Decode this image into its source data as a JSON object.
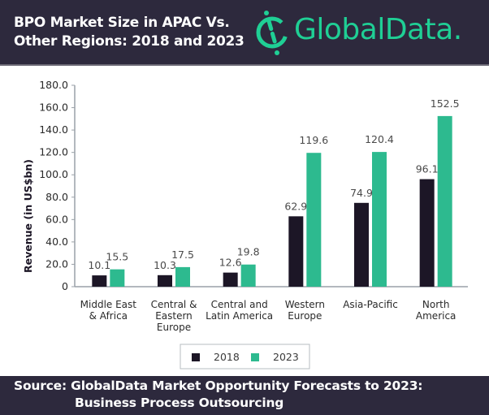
{
  "header": {
    "title_line1": "BPO Market Size in APAC Vs.",
    "title_line2": "Other Regions: 2018 and 2023",
    "logo_text": "GlobalData.",
    "logo_icon": "globaldata-logo-icon"
  },
  "colors": {
    "header_bg": "#2d293d",
    "brand_green": "#1fcf95",
    "series_2018": "#1c1626",
    "series_2023": "#2dba8f",
    "axis": "#9aa1a8"
  },
  "chart_data": {
    "type": "bar",
    "title": "BPO Market Size in APAC Vs. Other Regions: 2018 and 2023",
    "xlabel": "",
    "ylabel": "Revenue (in US$bn)",
    "ylim": [
      0,
      180
    ],
    "yticks": [
      0,
      20,
      40,
      60,
      80,
      100,
      120,
      140,
      160,
      180
    ],
    "ytick_labels": [
      "0",
      "20.0",
      "40.0",
      "60.0",
      "80.0",
      "100.0",
      "120.0",
      "140.0",
      "160.0",
      "180.0"
    ],
    "grid": false,
    "categories": [
      [
        "Middle East",
        "& Africa"
      ],
      [
        "Central &",
        "Eastern",
        "Europe"
      ],
      [
        "Central and",
        "Latin America"
      ],
      [
        "Western",
        "Europe"
      ],
      [
        "Asia-Pacific"
      ],
      [
        "North",
        "America"
      ]
    ],
    "series": [
      {
        "name": "2018",
        "values": [
          10.1,
          10.3,
          12.6,
          62.9,
          74.9,
          96.1
        ],
        "labels": [
          "10.1",
          "10.3",
          "12.6",
          "62.9",
          "74.9",
          "96.1"
        ]
      },
      {
        "name": "2023",
        "values": [
          15.5,
          17.5,
          19.8,
          119.6,
          120.4,
          152.5
        ],
        "labels": [
          "15.5",
          "17.5",
          "19.8",
          "119.6",
          "120.4",
          "152.5"
        ]
      }
    ],
    "legend": {
      "position": "bottom-center",
      "entries": [
        "2018",
        "2023"
      ]
    }
  },
  "footer": {
    "line1": "Source: GlobalData Market Opportunity Forecasts to 2023:",
    "line2": "Business Process Outsourcing"
  }
}
